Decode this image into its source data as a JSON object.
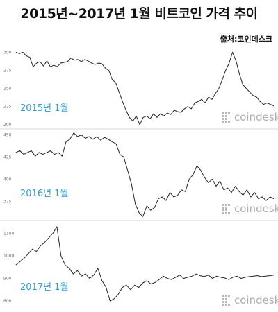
{
  "title": "2015년~2017년 1월 비트코인 가격 추이",
  "source": "출처:코인데스크",
  "watermark": "coindesk",
  "colors": {
    "line": "#222222",
    "label": "#2a9fd6",
    "watermark": "#b0b0b0"
  },
  "chart_data": [
    {
      "type": "line",
      "label": "2015년 1월",
      "yticks": [
        300,
        275,
        250,
        225,
        200
      ],
      "ylim": [
        197,
        307
      ],
      "y": [
        300,
        298,
        300,
        295,
        293,
        280,
        285,
        287,
        281,
        288,
        280,
        282,
        280,
        285,
        286,
        287,
        292,
        289,
        290,
        287,
        290,
        288,
        285,
        283,
        285,
        284,
        278,
        275,
        262,
        258,
        245,
        232,
        220,
        210,
        205,
        212,
        200,
        210,
        212,
        208,
        215,
        210,
        215,
        212,
        216,
        214,
        220,
        218,
        217,
        222,
        225,
        222,
        230,
        232,
        235,
        230,
        238,
        235,
        243,
        250,
        262,
        275,
        285,
        300,
        288,
        270,
        255,
        250,
        245,
        240,
        238,
        232,
        228,
        230,
        228,
        226
      ]
    },
    {
      "type": "line",
      "label": "2016년 1월",
      "yticks": [
        450,
        425,
        400,
        375
      ],
      "ylim": [
        355,
        455
      ],
      "y": [
        430,
        432,
        428,
        430,
        432,
        426,
        430,
        428,
        430,
        432,
        428,
        430,
        426,
        442,
        445,
        452,
        448,
        450,
        446,
        448,
        445,
        448,
        444,
        447,
        445,
        442,
        440,
        428,
        425,
        410,
        395,
        372,
        362,
        358,
        370,
        365,
        368,
        378,
        380,
        376,
        385,
        380,
        382,
        388,
        386,
        400,
        405,
        415,
        410,
        402,
        396,
        400,
        392,
        398,
        388,
        390,
        385,
        392,
        386,
        382,
        388,
        380,
        385,
        378,
        380,
        376,
        380,
        378
      ]
    },
    {
      "type": "line",
      "label": "2017년 1월",
      "yticks": [
        1100,
        1000,
        900,
        800
      ],
      "ylim": [
        760,
        1145
      ],
      "y": [
        960,
        975,
        990,
        1010,
        1030,
        1020,
        1045,
        1060,
        1080,
        1100,
        1130,
        1000,
        960,
        945,
        920,
        935,
        910,
        920,
        900,
        915,
        945,
        890,
        860,
        800,
        810,
        830,
        860,
        870,
        850,
        870,
        860,
        880,
        890,
        875,
        882,
        895,
        910,
        900,
        895,
        905,
        915,
        900,
        905,
        910,
        920,
        912,
        908,
        915,
        900,
        910,
        905,
        902,
        895,
        905,
        910,
        900,
        905,
        908,
        910,
        912,
        908,
        910,
        912,
        915
      ]
    }
  ]
}
